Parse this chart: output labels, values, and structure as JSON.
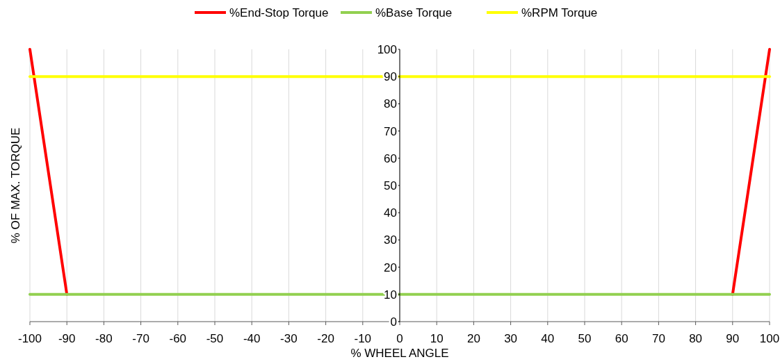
{
  "chart_data": {
    "type": "line",
    "xlabel": "% WHEEL ANGLE",
    "ylabel": "% OF MAX. TORQUE",
    "xlim": [
      -100,
      100
    ],
    "xticks": [
      -100,
      -90,
      -80,
      -70,
      -60,
      -50,
      -40,
      -30,
      -20,
      -10,
      0,
      10,
      20,
      30,
      40,
      50,
      60,
      70,
      80,
      90,
      100
    ],
    "ylim": [
      0,
      100
    ],
    "yticks": [
      0,
      10,
      20,
      30,
      40,
      50,
      60,
      70,
      80,
      90,
      100
    ],
    "grid": "x",
    "legend": "top",
    "marker": "none",
    "line_style": "solid",
    "series": [
      {
        "name": "%End-Stop Torque",
        "color": "#ff0000",
        "x": [
          -100,
          -90,
          0,
          90,
          100
        ],
        "values": [
          100,
          10,
          null,
          10,
          100
        ]
      },
      {
        "name": "%Base Torque",
        "color": "#92d050",
        "x": [
          -100,
          100
        ],
        "values": [
          10,
          10
        ]
      },
      {
        "name": "%RPM Torque",
        "color": "#ffff00",
        "x": [
          -100,
          100
        ],
        "values": [
          90,
          90
        ]
      }
    ]
  }
}
